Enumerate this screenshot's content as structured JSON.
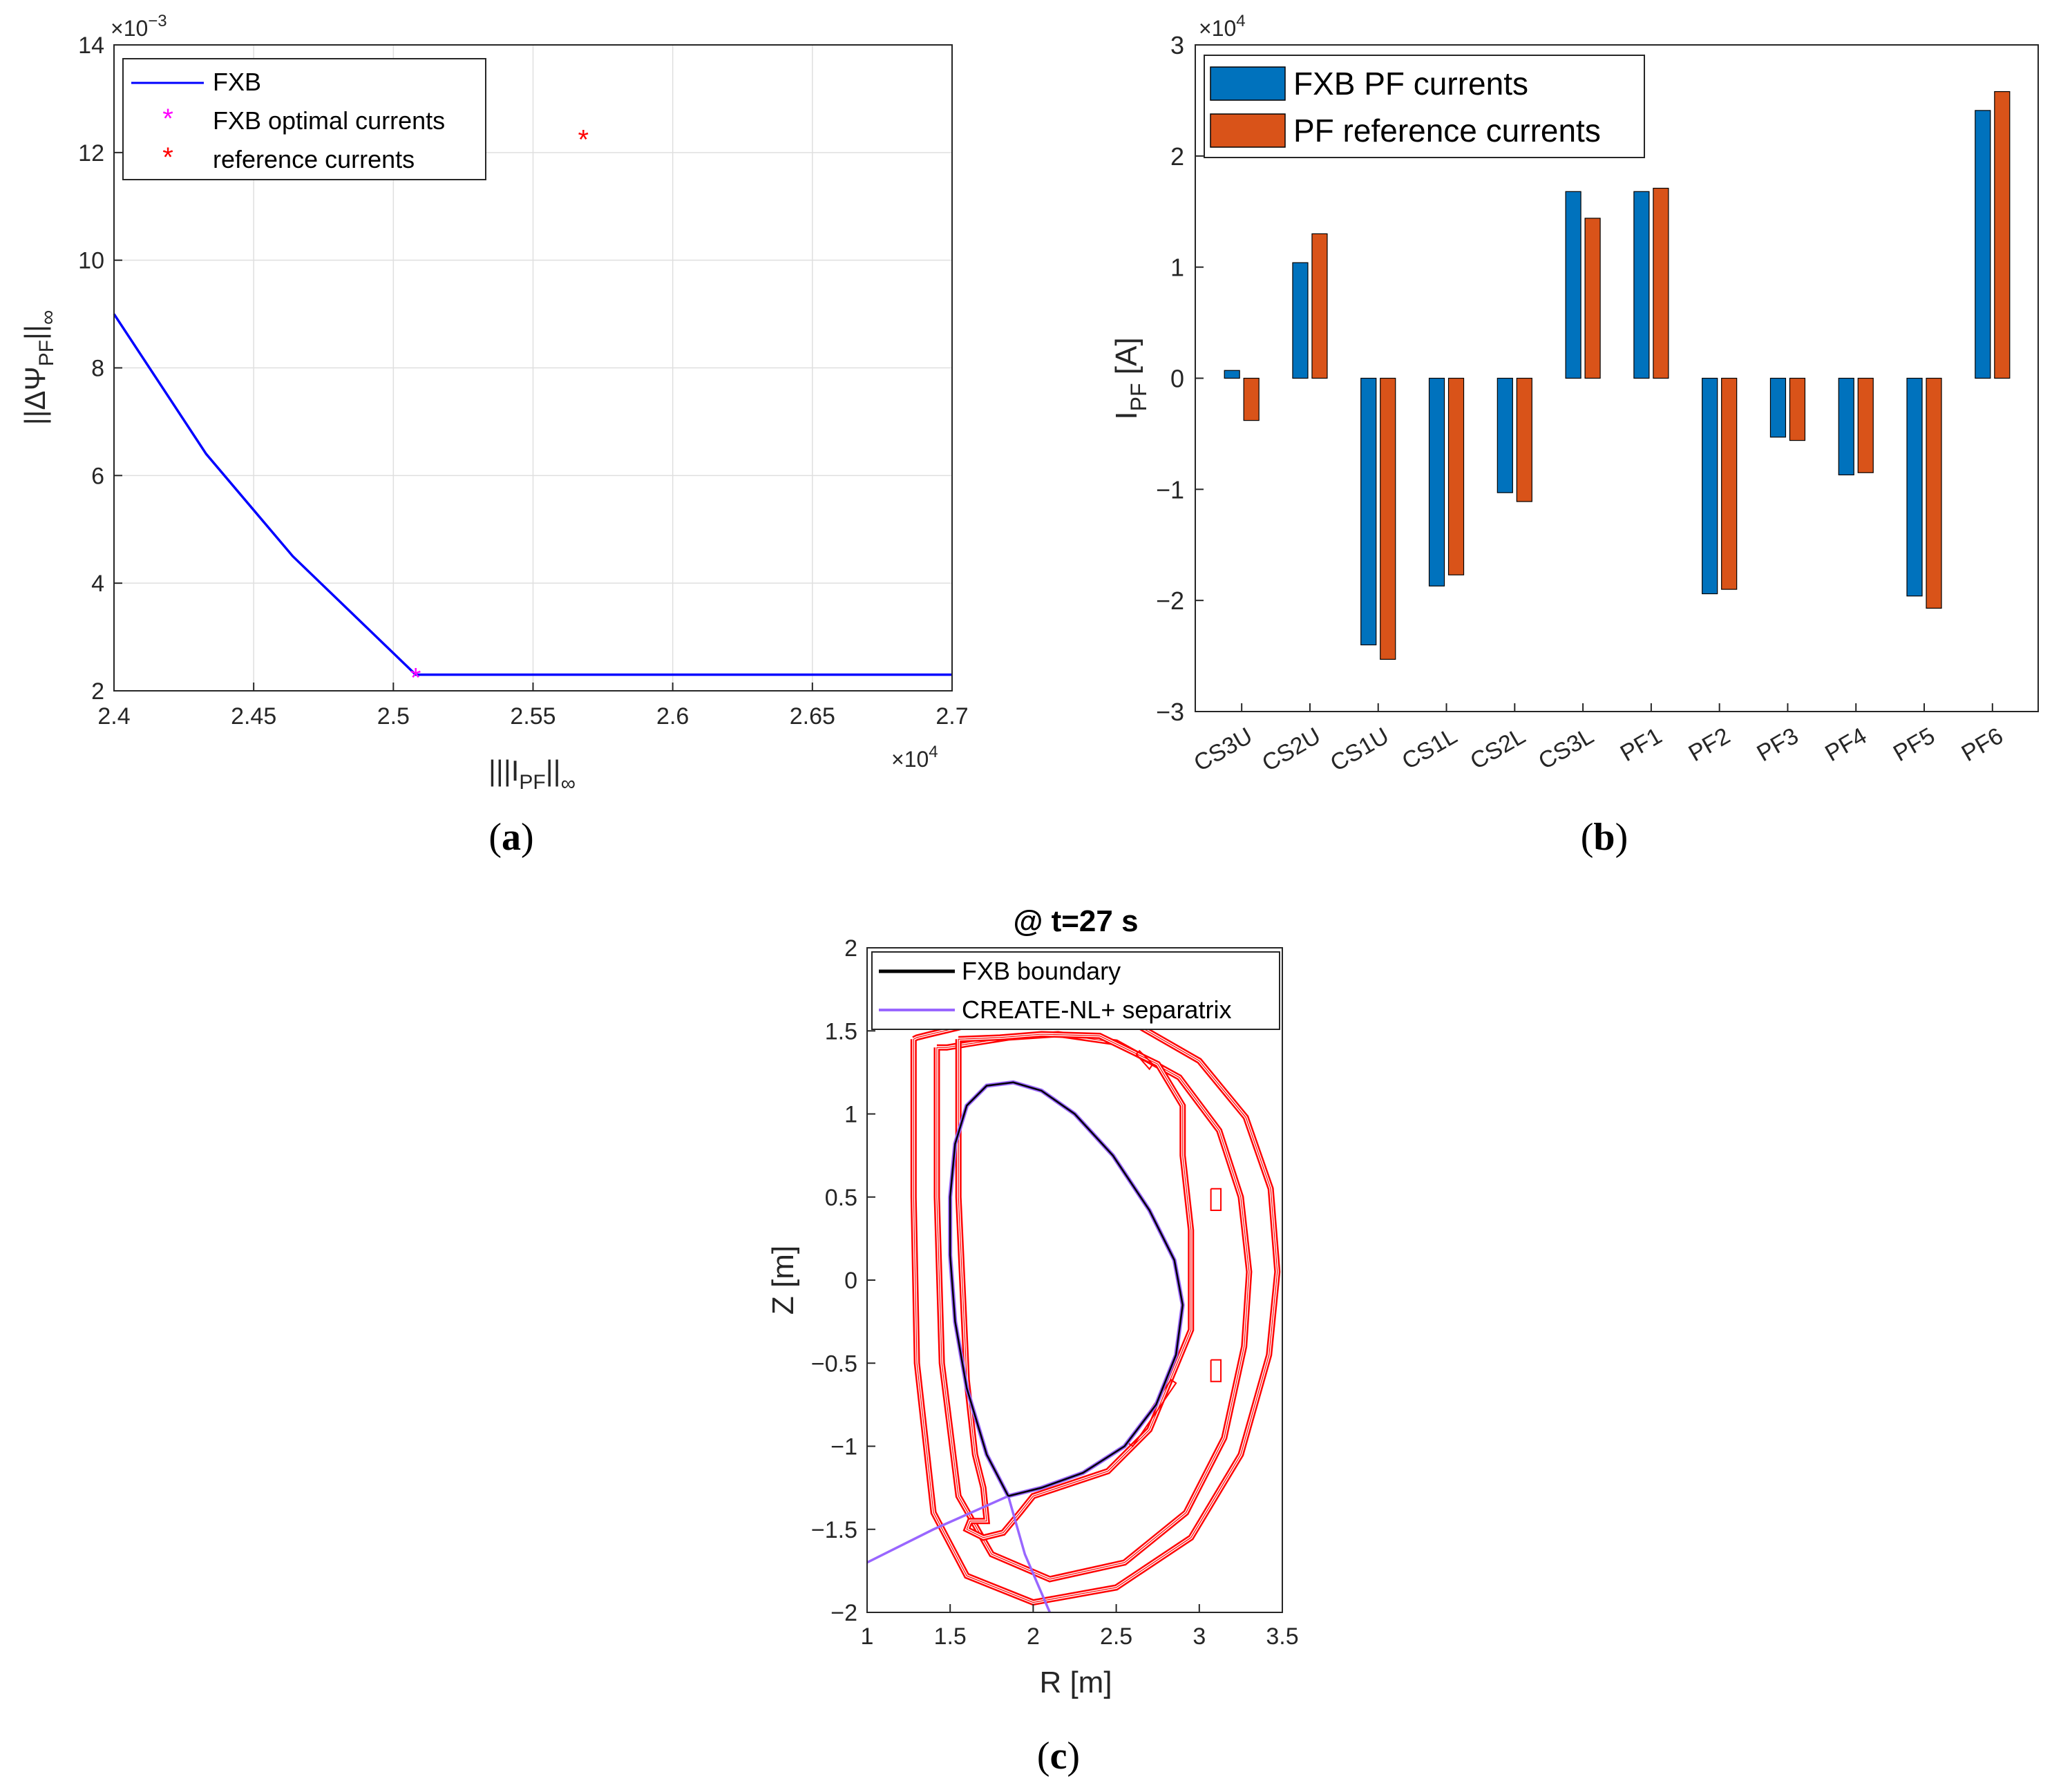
{
  "chart_data": [
    {
      "id": "a",
      "type": "line",
      "panel_label": {
        "open": "(",
        "letter": "a",
        "close": ")"
      },
      "xlabel": "|||I_PF||∞",
      "ylabel": "||ΔΨ_PF||∞",
      "xlim": [
        24000,
        27000
      ],
      "ylim": [
        0.002,
        0.014
      ],
      "x_ticks": [
        24000,
        24500,
        25000,
        25500,
        26000,
        26500,
        27000
      ],
      "x_tick_labels": [
        "2.4",
        "2.45",
        "2.5",
        "2.55",
        "2.6",
        "2.65",
        "2.7"
      ],
      "y_ticks": [
        0.002,
        0.004,
        0.006,
        0.008,
        0.01,
        0.012,
        0.014
      ],
      "y_tick_labels": [
        "2",
        "4",
        "6",
        "8",
        "10",
        "12",
        "14"
      ],
      "x_exponent": "×10",
      "x_exponent_power": "4",
      "y_exponent": "×10",
      "y_exponent_power": "−3",
      "grid": true,
      "legend_position": "top-left",
      "series": [
        {
          "name": "FXB",
          "kind": "line",
          "color": "#0000ff",
          "x": [
            24000,
            24330,
            24640,
            24900,
            25080,
            25300,
            26000,
            27000
          ],
          "y": [
            0.009,
            0.0064,
            0.0045,
            0.0032,
            0.0023,
            0.0023,
            0.0023,
            0.0023
          ]
        },
        {
          "name": "FXB optimal currents",
          "kind": "marker",
          "color": "#ff00ff",
          "x": [
            25080
          ],
          "y": [
            0.0023
          ]
        },
        {
          "name": "reference currents",
          "kind": "marker",
          "color": "#ff0000",
          "x": [
            25680
          ],
          "y": [
            0.0123
          ]
        }
      ]
    },
    {
      "id": "b",
      "type": "bar",
      "panel_label": {
        "open": "(",
        "letter": "b",
        "close": ")"
      },
      "ylabel": "I_PF [A]",
      "ylim": [
        -30000,
        30000
      ],
      "y_ticks": [
        -30000,
        -20000,
        -10000,
        0,
        10000,
        20000,
        30000
      ],
      "y_tick_labels": [
        "−3",
        "−2",
        "−1",
        "0",
        "1",
        "2",
        "3"
      ],
      "y_exponent": "×10",
      "y_exponent_power": "4",
      "grid": false,
      "legend_position": "top-left",
      "categories": [
        "CS3U",
        "CS2U",
        "CS1U",
        "CS1L",
        "CS2L",
        "CS3L",
        "PF1",
        "PF2",
        "PF3",
        "PF4",
        "PF5",
        "PF6"
      ],
      "series": [
        {
          "name": "FXB PF currents",
          "color": "#0072bd",
          "values": [
            700,
            10400,
            -24000,
            -18700,
            -10300,
            16800,
            16800,
            -19400,
            -5300,
            -8700,
            -19600,
            24100
          ]
        },
        {
          "name": "PF reference currents",
          "color": "#d95319",
          "values": [
            -3800,
            13000,
            -25300,
            -17700,
            -11100,
            14400,
            17100,
            -19000,
            -5600,
            -8500,
            -20700,
            25800
          ]
        }
      ]
    },
    {
      "id": "c",
      "type": "line",
      "panel_label": {
        "open": "(",
        "letter": "c",
        "close": ")"
      },
      "title": "@ t=27 s",
      "xlabel": "R [m]",
      "ylabel": "Z [m]",
      "xlim": [
        1,
        3.5
      ],
      "ylim": [
        -2,
        2
      ],
      "x_ticks": [
        1,
        1.5,
        2,
        2.5,
        3,
        3.5
      ],
      "x_tick_labels": [
        "1",
        "1.5",
        "2",
        "2.5",
        "3",
        "3.5"
      ],
      "y_ticks": [
        -2,
        -1.5,
        -1,
        -0.5,
        0,
        0.5,
        1,
        1.5,
        2
      ],
      "y_tick_labels": [
        "−2",
        "−1.5",
        "−1",
        "−0.5",
        "0",
        "0.5",
        "1",
        "1.5",
        "2"
      ],
      "grid": false,
      "legend_position": "top",
      "series": [
        {
          "name": "FXB boundary",
          "color": "#000000",
          "x": [
            1.85,
            1.72,
            1.6,
            1.53,
            1.5,
            1.5,
            1.53,
            1.6,
            1.72,
            1.88,
            2.05,
            2.25,
            2.48,
            2.7,
            2.85,
            2.9,
            2.86,
            2.74,
            2.55,
            2.3,
            2.05,
            1.85
          ],
          "y": [
            -1.3,
            -1.05,
            -0.65,
            -0.25,
            0.15,
            0.5,
            0.82,
            1.05,
            1.17,
            1.19,
            1.14,
            1.0,
            0.75,
            0.42,
            0.12,
            -0.15,
            -0.45,
            -0.75,
            -1.0,
            -1.16,
            -1.25,
            -1.3
          ]
        },
        {
          "name": "CREATE-NL+ separatrix",
          "color": "#9966ff",
          "x": [
            1.85,
            1.72,
            1.6,
            1.53,
            1.5,
            1.5,
            1.53,
            1.6,
            1.72,
            1.88,
            2.05,
            2.25,
            2.48,
            2.7,
            2.85,
            2.9,
            2.86,
            2.74,
            2.55,
            2.3,
            2.05,
            1.85
          ],
          "y": [
            -1.3,
            -1.05,
            -0.65,
            -0.25,
            0.15,
            0.5,
            0.82,
            1.05,
            1.17,
            1.19,
            1.14,
            1.0,
            0.75,
            0.42,
            0.12,
            -0.15,
            -0.45,
            -0.75,
            -1.0,
            -1.16,
            -1.25,
            -1.3
          ],
          "legs": [
            {
              "x": [
                1.85,
                1.4,
                1.0
              ],
              "y": [
                -1.3,
                -1.5,
                -1.7
              ]
            },
            {
              "x": [
                1.85,
                1.95,
                2.1
              ],
              "y": [
                -1.3,
                -1.65,
                -2.0
              ]
            }
          ]
        },
        {
          "name": "vessel-outer",
          "color": "#ff0000",
          "x": [
            1.28,
            1.28,
            1.3,
            1.4,
            1.6,
            2.0,
            2.5,
            2.95,
            3.25,
            3.42,
            3.47,
            3.43,
            3.28,
            3.0,
            2.6,
            2.2,
            1.85,
            1.55,
            1.38,
            1.3,
            1.28
          ],
          "y": [
            1.45,
            0.5,
            -0.5,
            -1.4,
            -1.78,
            -1.94,
            -1.85,
            -1.55,
            -1.05,
            -0.45,
            0.05,
            0.55,
            0.98,
            1.32,
            1.55,
            1.62,
            1.6,
            1.52,
            1.48,
            1.46,
            1.45
          ]
        },
        {
          "name": "vessel-inner",
          "color": "#ff0000",
          "x": [
            1.42,
            1.42,
            1.45,
            1.55,
            1.75,
            2.1,
            2.55,
            2.92,
            3.15,
            3.27,
            3.3,
            3.25,
            3.12,
            2.88,
            2.5,
            2.15,
            1.85,
            1.6,
            1.48,
            1.43,
            1.42
          ],
          "y": [
            1.4,
            0.5,
            -0.5,
            -1.3,
            -1.65,
            -1.8,
            -1.7,
            -1.4,
            -0.95,
            -0.4,
            0.05,
            0.5,
            0.9,
            1.22,
            1.43,
            1.48,
            1.46,
            1.42,
            1.4,
            1.4,
            1.4
          ]
        },
        {
          "name": "first-wall",
          "color": "#ff0000",
          "x": [
            1.55,
            1.55,
            1.6,
            1.65,
            1.7,
            1.72,
            1.62,
            1.6,
            1.7,
            1.82,
            1.92,
            2.0,
            2.15,
            2.45,
            2.7,
            2.95,
            2.95,
            2.9,
            2.9,
            2.75,
            2.4,
            2.05,
            1.8,
            1.55
          ],
          "y": [
            1.45,
            0.5,
            -0.6,
            -1.05,
            -1.25,
            -1.45,
            -1.45,
            -1.5,
            -1.55,
            -1.52,
            -1.4,
            -1.3,
            -1.25,
            -1.15,
            -0.9,
            -0.3,
            0.3,
            0.75,
            1.05,
            1.3,
            1.47,
            1.48,
            1.46,
            1.45
          ]
        }
      ],
      "components": [
        {
          "name": "coil-upper-right",
          "x": [
            3.07,
            3.13,
            3.13,
            3.07,
            3.07
          ],
          "y": [
            0.55,
            0.55,
            0.42,
            0.42,
            0.55
          ]
        },
        {
          "name": "coil-lower-right",
          "x": [
            3.07,
            3.13,
            3.13,
            3.07,
            3.07
          ],
          "y": [
            -0.48,
            -0.48,
            -0.61,
            -0.61,
            -0.48
          ]
        },
        {
          "name": "plate-upper",
          "x": [
            2.62,
            2.7,
            2.72,
            2.64,
            2.62
          ],
          "y": [
            1.36,
            1.27,
            1.3,
            1.38,
            1.36
          ]
        },
        {
          "name": "plate-lower",
          "x": [
            2.57,
            2.83,
            2.86,
            2.6,
            2.57
          ],
          "y": [
            -0.98,
            -0.6,
            -0.62,
            -1.0,
            -0.98
          ]
        }
      ]
    }
  ]
}
